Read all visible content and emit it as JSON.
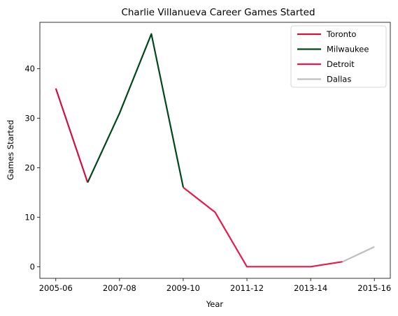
{
  "chart_data": {
    "type": "line",
    "title": "Charlie Villanueva Career Games Started",
    "xlabel": "Year",
    "ylabel": "Games Started",
    "x": [
      "2005-06",
      "2006-07",
      "2007-08",
      "2008-09",
      "2009-10",
      "2010-11",
      "2011-12",
      "2012-13",
      "2013-14",
      "2014-15",
      "2015-16"
    ],
    "x_tick_labels": [
      "2005-06",
      "2007-08",
      "2009-10",
      "2011-12",
      "2013-14",
      "2015-16"
    ],
    "y_ticks": [
      0,
      10,
      20,
      30,
      40
    ],
    "ylim": [
      -2.35,
      49.35
    ],
    "grid": false,
    "legend_position": "top-right",
    "series": [
      {
        "name": "Toronto",
        "color": "#CE1141",
        "points": [
          [
            "2005-06",
            36
          ],
          [
            "2006-07",
            17
          ]
        ]
      },
      {
        "name": "Milwaukee",
        "color": "#00471B",
        "points": [
          [
            "2006-07",
            17
          ],
          [
            "2007-08",
            31
          ],
          [
            "2008-09",
            47
          ],
          [
            "2009-10",
            16
          ]
        ]
      },
      {
        "name": "Detroit",
        "color": "#E8194C",
        "points": [
          [
            "2009-10",
            16
          ],
          [
            "2010-11",
            11
          ],
          [
            "2011-12",
            0
          ],
          [
            "2012-13",
            0
          ],
          [
            "2013-14",
            0
          ],
          [
            "2014-15",
            1
          ]
        ]
      },
      {
        "name": "Dallas",
        "color": "#BFBFBF",
        "points": [
          [
            "2014-15",
            1
          ],
          [
            "2015-16",
            4
          ]
        ]
      }
    ]
  }
}
